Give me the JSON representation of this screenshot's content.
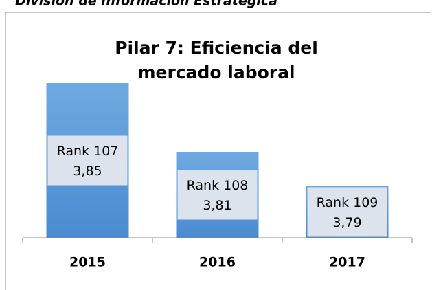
{
  "header": "División de Información Estratégica",
  "chart_data": {
    "type": "bar",
    "title": "Pilar 7: Eficiencia del mercado laboral",
    "categories": [
      "2015",
      "2016",
      "2017"
    ],
    "values": [
      3.85,
      3.81,
      3.79
    ],
    "value_labels": [
      "3,85",
      "3,81",
      "3,79"
    ],
    "rank_labels": [
      "Rank 107",
      "Rank 108",
      "Rank 109"
    ],
    "color": "#5b9bd5",
    "ylim": [
      3.76,
      3.86
    ]
  }
}
